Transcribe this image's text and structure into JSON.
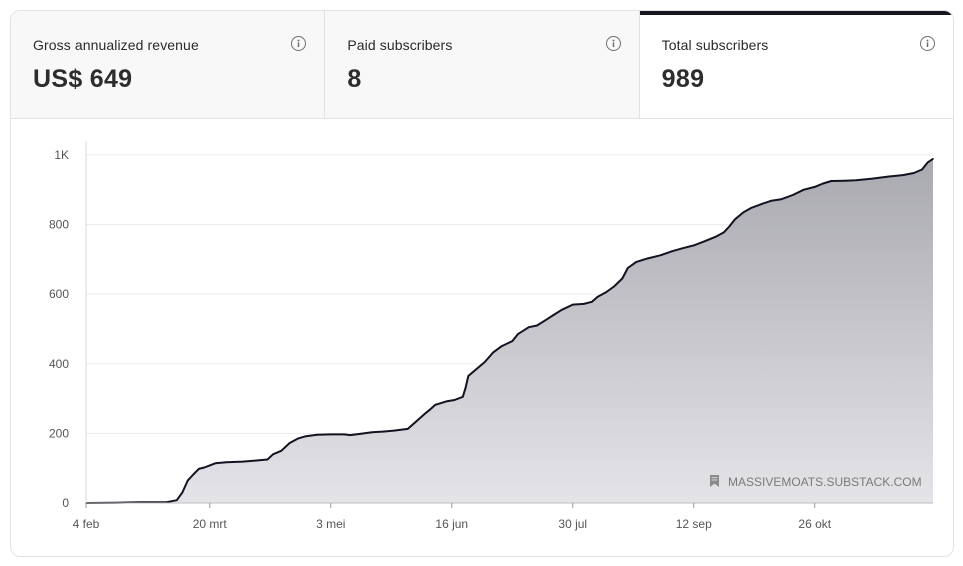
{
  "metrics": [
    {
      "label": "Gross annualized revenue",
      "value": "US$ 649",
      "active": false
    },
    {
      "label": "Paid subscribers",
      "value": "8",
      "active": false
    },
    {
      "label": "Total subscribers",
      "value": "989",
      "active": true
    }
  ],
  "watermark": {
    "text": "MASSIVEMOATS.SUBSTACK.COM",
    "icon": "bookmark-icon"
  },
  "chart_data": {
    "type": "area",
    "title": "",
    "xlabel": "",
    "ylabel": "",
    "ylim": [
      0,
      1040
    ],
    "yticks": [
      0,
      200,
      400,
      600,
      800,
      1000
    ],
    "ytick_labels": [
      "0",
      "200",
      "400",
      "600",
      "800",
      "1K"
    ],
    "xticks": [
      "2024-02-04",
      "2024-03-20",
      "2024-05-03",
      "2024-06-16",
      "2024-07-30",
      "2024-09-12",
      "2024-10-26"
    ],
    "xtick_labels": [
      "4 feb",
      "20 mrt",
      "3 mei",
      "16 jun",
      "30 jul",
      "12 sep",
      "26 okt"
    ],
    "xlim": [
      "2024-02-04",
      "2024-12-08"
    ],
    "grid": true,
    "legend": "none",
    "colors": {
      "line": "#111320",
      "fill_top": "#a9a9b0",
      "fill_bottom": "#e4e4e8"
    },
    "series": [
      {
        "points": [
          [
            "2024-02-04",
            0
          ],
          [
            "2024-02-15",
            1
          ],
          [
            "2024-02-24",
            2
          ],
          [
            "2024-03-04",
            2
          ],
          [
            "2024-03-08",
            8
          ],
          [
            "2024-03-10",
            30
          ],
          [
            "2024-03-12",
            65
          ],
          [
            "2024-03-14",
            82
          ],
          [
            "2024-03-16",
            98
          ],
          [
            "2024-03-18",
            102
          ],
          [
            "2024-03-20",
            108
          ],
          [
            "2024-03-22",
            114
          ],
          [
            "2024-03-26",
            117
          ],
          [
            "2024-04-01",
            119
          ],
          [
            "2024-04-06",
            122
          ],
          [
            "2024-04-10",
            125
          ],
          [
            "2024-04-12",
            140
          ],
          [
            "2024-04-15",
            150
          ],
          [
            "2024-04-18",
            172
          ],
          [
            "2024-04-21",
            185
          ],
          [
            "2024-04-24",
            192
          ],
          [
            "2024-04-28",
            196
          ],
          [
            "2024-05-03",
            197
          ],
          [
            "2024-05-08",
            197
          ],
          [
            "2024-05-10",
            195
          ],
          [
            "2024-05-14",
            199
          ],
          [
            "2024-05-18",
            203
          ],
          [
            "2024-05-22",
            205
          ],
          [
            "2024-05-26",
            208
          ],
          [
            "2024-05-31",
            213
          ],
          [
            "2024-06-03",
            234
          ],
          [
            "2024-06-06",
            255
          ],
          [
            "2024-06-08",
            268
          ],
          [
            "2024-06-10",
            282
          ],
          [
            "2024-06-14",
            292
          ],
          [
            "2024-06-17",
            296
          ],
          [
            "2024-06-20",
            305
          ],
          [
            "2024-06-21",
            330
          ],
          [
            "2024-06-22",
            365
          ],
          [
            "2024-06-25",
            385
          ],
          [
            "2024-06-28",
            405
          ],
          [
            "2024-07-01",
            432
          ],
          [
            "2024-07-04",
            450
          ],
          [
            "2024-07-08",
            465
          ],
          [
            "2024-07-10",
            485
          ],
          [
            "2024-07-14",
            505
          ],
          [
            "2024-07-17",
            510
          ],
          [
            "2024-07-20",
            525
          ],
          [
            "2024-07-23",
            540
          ],
          [
            "2024-07-26",
            555
          ],
          [
            "2024-07-30",
            570
          ],
          [
            "2024-08-03",
            572
          ],
          [
            "2024-08-06",
            578
          ],
          [
            "2024-08-08",
            592
          ],
          [
            "2024-08-11",
            605
          ],
          [
            "2024-08-14",
            622
          ],
          [
            "2024-08-17",
            645
          ],
          [
            "2024-08-19",
            675
          ],
          [
            "2024-08-22",
            692
          ],
          [
            "2024-08-26",
            702
          ],
          [
            "2024-08-31",
            712
          ],
          [
            "2024-09-04",
            723
          ],
          [
            "2024-09-08",
            732
          ],
          [
            "2024-09-12",
            740
          ],
          [
            "2024-09-16",
            752
          ],
          [
            "2024-09-20",
            765
          ],
          [
            "2024-09-23",
            778
          ],
          [
            "2024-09-25",
            795
          ],
          [
            "2024-09-27",
            815
          ],
          [
            "2024-09-30",
            835
          ],
          [
            "2024-10-03",
            848
          ],
          [
            "2024-10-07",
            860
          ],
          [
            "2024-10-10",
            868
          ],
          [
            "2024-10-14",
            873
          ],
          [
            "2024-10-18",
            885
          ],
          [
            "2024-10-22",
            900
          ],
          [
            "2024-10-26",
            908
          ],
          [
            "2024-10-29",
            918
          ],
          [
            "2024-11-01",
            925
          ],
          [
            "2024-11-06",
            926
          ],
          [
            "2024-11-10",
            927
          ],
          [
            "2024-11-16",
            932
          ],
          [
            "2024-11-22",
            938
          ],
          [
            "2024-11-27",
            942
          ],
          [
            "2024-12-01",
            948
          ],
          [
            "2024-12-04",
            958
          ],
          [
            "2024-12-06",
            978
          ],
          [
            "2024-12-08",
            989
          ]
        ]
      }
    ]
  }
}
